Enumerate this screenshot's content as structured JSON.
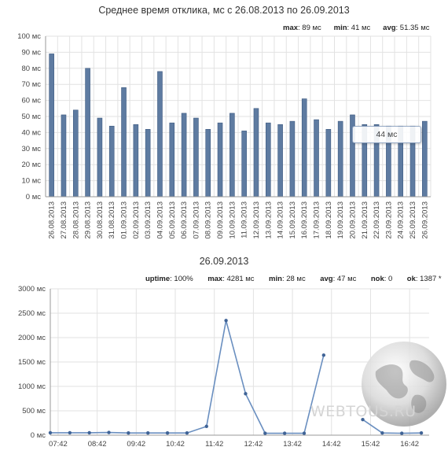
{
  "bar_stats": [
    {
      "label": "max",
      "value": ": 89 мс"
    },
    {
      "label": "min",
      "value": ": 41 мс"
    },
    {
      "label": "avg",
      "value": ": 51.35 мс"
    }
  ],
  "line_stats": [
    {
      "label": "uptime",
      "value": ": 100%"
    },
    {
      "label": "max",
      "value": ": 4281 мс"
    },
    {
      "label": "min",
      "value": ": 28 мс"
    },
    {
      "label": "avg",
      "value": ": 47 мс"
    },
    {
      "label": "nok",
      "value": ": 0"
    },
    {
      "label": "ok",
      "value": ": 1387 *"
    }
  ],
  "tooltip": "44 мс",
  "watermark": "WEBTOUS.RU",
  "colors": {
    "bar_fill": "#5e7ba1",
    "bar_stroke": "#3e5a80",
    "line": "#6a8fc0",
    "grid": "#e2e2e2",
    "axis": "#999999"
  },
  "chart_data": [
    {
      "type": "bar",
      "title": "Среднее время отклика, мс с 26.08.2013 по 26.09.2013",
      "ylim": [
        0,
        100
      ],
      "yticks": [
        "0 мс",
        "10 мс",
        "20 мс",
        "30 мс",
        "40 мс",
        "50 мс",
        "60 мс",
        "70 мс",
        "80 мс",
        "90 мс",
        "100 мс"
      ],
      "categories": [
        "26.08.2013",
        "27.08.2013",
        "28.08.2013",
        "29.08.2013",
        "30.08.2013",
        "31.08.2013",
        "01.09.2013",
        "02.09.2013",
        "03.09.2013",
        "04.09.2013",
        "05.09.2013",
        "06.09.2013",
        "07.09.2013",
        "08.09.2013",
        "09.09.2013",
        "10.09.2013",
        "11.09.2013",
        "12.09.2013",
        "13.09.2013",
        "14.09.2013",
        "15.09.2013",
        "16.09.2013",
        "17.09.2013",
        "18.09.2013",
        "19.09.2013",
        "20.09.2013",
        "21.09.2013",
        "22.09.2013",
        "23.09.2013",
        "24.09.2013",
        "25.09.2013",
        "26.09.2013"
      ],
      "values": [
        89,
        51,
        54,
        80,
        49,
        44,
        68,
        45,
        42,
        78,
        46,
        52,
        49,
        42,
        46,
        52,
        41,
        55,
        46,
        45,
        47,
        61,
        48,
        42,
        47,
        51,
        45,
        45,
        44,
        44,
        44,
        47
      ],
      "grid": true
    },
    {
      "type": "line",
      "title": "26.09.2013",
      "ylim": [
        0,
        3000
      ],
      "yticks": [
        "0 мс",
        "500 мс",
        "1000 мс",
        "1500 мс",
        "2000 мс",
        "2500 мс",
        "3000 мс"
      ],
      "xticks": [
        "07:42",
        "08:42",
        "09:42",
        "10:42",
        "11:42",
        "12:42",
        "13:42",
        "14:42",
        "15:42",
        "16:42"
      ],
      "x_range_hours": [
        7.5,
        17.2
      ],
      "x_hours": [
        7.5,
        8.0,
        8.5,
        9.0,
        9.5,
        10.0,
        10.5,
        11.0,
        11.5,
        12.0,
        12.5,
        13.0,
        13.5,
        14.0,
        14.5,
        15.5,
        16.0,
        16.5,
        17.0
      ],
      "values": [
        50,
        50,
        50,
        55,
        45,
        45,
        45,
        45,
        180,
        2350,
        850,
        40,
        40,
        40,
        1640,
        320,
        45,
        40,
        45
      ],
      "segments": [
        [
          0,
          14
        ],
        [
          15,
          18
        ]
      ],
      "grid": true
    }
  ]
}
